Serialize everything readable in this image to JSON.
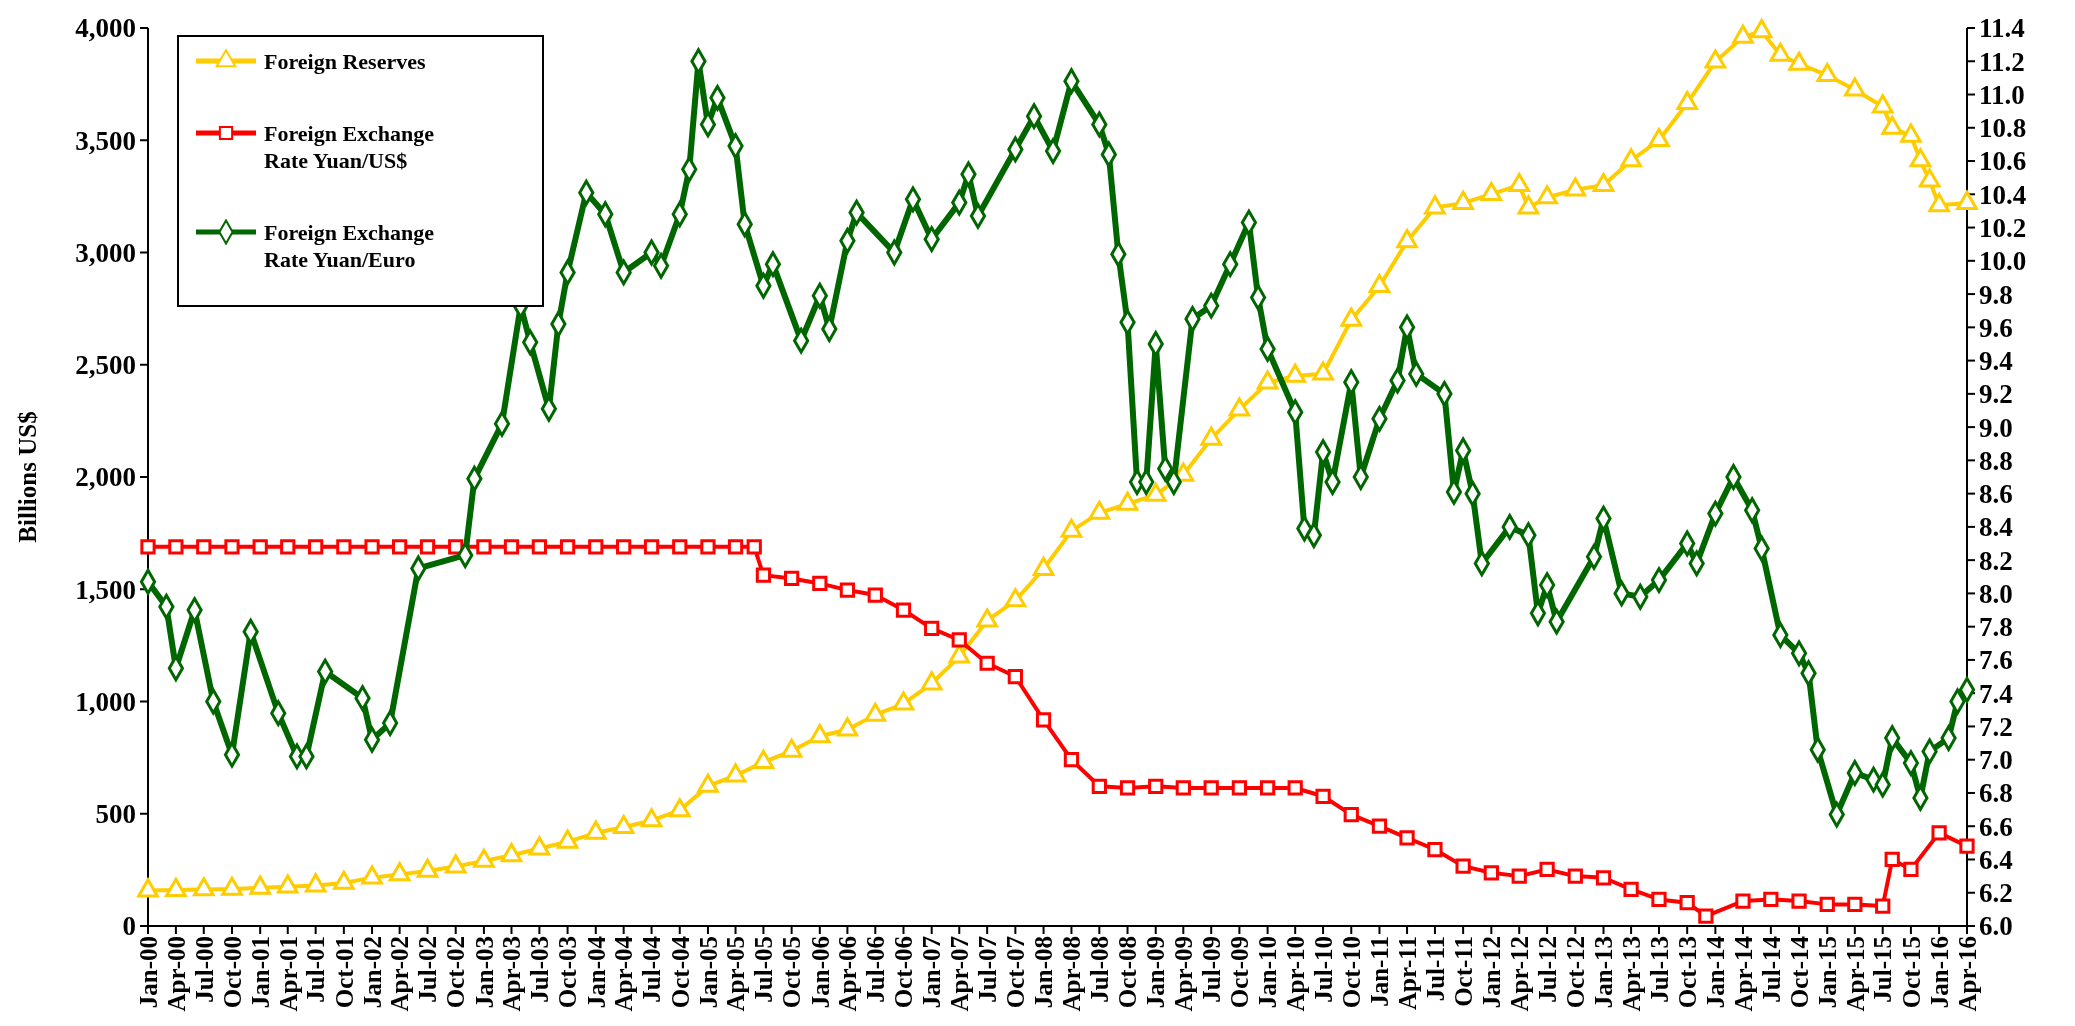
{
  "chart_data": {
    "type": "line",
    "ylabel": "Billions US$",
    "legend": "top left",
    "grid": false,
    "xlim": [
      "2000-01",
      "2016-04"
    ],
    "xticks": [
      {
        "value": "2000-01",
        "label": "Jan-00"
      },
      {
        "value": "2000-04",
        "label": "Apr-00"
      },
      {
        "value": "2000-07",
        "label": "Jul-00"
      },
      {
        "value": "2000-10",
        "label": "Oct-00"
      },
      {
        "value": "2001-01",
        "label": "Jan-01"
      },
      {
        "value": "2001-04",
        "label": "Apr-01"
      },
      {
        "value": "2001-07",
        "label": "Jul-01"
      },
      {
        "value": "2001-10",
        "label": "Oct-01"
      },
      {
        "value": "2002-01",
        "label": "Jan-02"
      },
      {
        "value": "2002-04",
        "label": "Apr-02"
      },
      {
        "value": "2002-07",
        "label": "Jul-02"
      },
      {
        "value": "2002-10",
        "label": "Oct-02"
      },
      {
        "value": "2003-01",
        "label": "Jan-03"
      },
      {
        "value": "2003-04",
        "label": "Apr-03"
      },
      {
        "value": "2003-07",
        "label": "Jul-03"
      },
      {
        "value": "2003-10",
        "label": "Oct-03"
      },
      {
        "value": "2004-01",
        "label": "Jan-04"
      },
      {
        "value": "2004-04",
        "label": "Apr-04"
      },
      {
        "value": "2004-07",
        "label": "Jul-04"
      },
      {
        "value": "2004-10",
        "label": "Oct-04"
      },
      {
        "value": "2005-01",
        "label": "Jan-05"
      },
      {
        "value": "2005-04",
        "label": "Apr-05"
      },
      {
        "value": "2005-07",
        "label": "Jul-05"
      },
      {
        "value": "2005-10",
        "label": "Oct-05"
      },
      {
        "value": "2006-01",
        "label": "Jan-06"
      },
      {
        "value": "2006-04",
        "label": "Apr-06"
      },
      {
        "value": "2006-07",
        "label": "Jul-06"
      },
      {
        "value": "2006-10",
        "label": "Oct-06"
      },
      {
        "value": "2007-01",
        "label": "Jan-07"
      },
      {
        "value": "2007-04",
        "label": "Apr-07"
      },
      {
        "value": "2007-07",
        "label": "Jul-07"
      },
      {
        "value": "2007-10",
        "label": "Oct-07"
      },
      {
        "value": "2008-01",
        "label": "Jan-08"
      },
      {
        "value": "2008-04",
        "label": "Apr-08"
      },
      {
        "value": "2008-07",
        "label": "Jul-08"
      },
      {
        "value": "2008-10",
        "label": "Oct-08"
      },
      {
        "value": "2009-01",
        "label": "Jan-09"
      },
      {
        "value": "2009-04",
        "label": "Apr-09"
      },
      {
        "value": "2009-07",
        "label": "Jul-09"
      },
      {
        "value": "2009-10",
        "label": "Oct-09"
      },
      {
        "value": "2010-01",
        "label": "Jan-10"
      },
      {
        "value": "2010-04",
        "label": "Apr-10"
      },
      {
        "value": "2010-07",
        "label": "Jul-10"
      },
      {
        "value": "2010-10",
        "label": "Oct-10"
      },
      {
        "value": "2011-01",
        "label": "Jan-11"
      },
      {
        "value": "2011-04",
        "label": "Apr-11"
      },
      {
        "value": "2011-07",
        "label": "Jul-11"
      },
      {
        "value": "2011-10",
        "label": "Oct-11"
      },
      {
        "value": "2012-01",
        "label": "Jan-12"
      },
      {
        "value": "2012-04",
        "label": "Apr-12"
      },
      {
        "value": "2012-07",
        "label": "Jul-12"
      },
      {
        "value": "2012-10",
        "label": "Oct-12"
      },
      {
        "value": "2013-01",
        "label": "Jan-13"
      },
      {
        "value": "2013-04",
        "label": "Apr-13"
      },
      {
        "value": "2013-07",
        "label": "Jul-13"
      },
      {
        "value": "2013-10",
        "label": "Oct-13"
      },
      {
        "value": "2014-01",
        "label": "Jan-14"
      },
      {
        "value": "2014-04",
        "label": "Apr-14"
      },
      {
        "value": "2014-07",
        "label": "Jul-14"
      },
      {
        "value": "2014-10",
        "label": "Oct-14"
      },
      {
        "value": "2015-01",
        "label": "Jan-15"
      },
      {
        "value": "2015-04",
        "label": "Apr-15"
      },
      {
        "value": "2015-07",
        "label": "Jul-15"
      },
      {
        "value": "2015-10",
        "label": "Oct-15"
      },
      {
        "value": "2016-01",
        "label": "Jan-16"
      },
      {
        "value": "2016-04",
        "label": "Apr-16"
      }
    ],
    "ylim": [
      0,
      4000
    ],
    "yticks": [
      0,
      500,
      {
        "value": 1000,
        "label": "1,000"
      },
      {
        "value": 1500,
        "label": "1,500"
      },
      {
        "value": 2000,
        "label": "2,000"
      },
      {
        "value": 2500,
        "label": "2,500"
      },
      {
        "value": 3000,
        "label": "3,000"
      },
      {
        "value": 3500,
        "label": "3,500"
      },
      {
        "value": 4000,
        "label": "4,000"
      }
    ],
    "y2lim": [
      6,
      11.4
    ],
    "y2ticks": [
      {
        "value": 6,
        "label": "6.0"
      },
      6.2,
      6.4,
      6.6,
      6.8,
      {
        "value": 7,
        "label": "7.0"
      },
      7.2,
      7.4,
      7.6,
      7.8,
      {
        "value": 8,
        "label": "8.0"
      },
      8.2,
      8.4,
      8.6,
      8.8,
      {
        "value": 9,
        "label": "9.0"
      },
      9.2,
      9.4,
      9.6,
      9.8,
      {
        "value": 10,
        "label": "10.0"
      },
      10.2,
      10.4,
      10.6,
      10.8,
      {
        "value": 11,
        "label": "11.0"
      },
      11.2,
      11.4
    ],
    "series": [
      {
        "name": "Foreign Reserves",
        "color": "#ffcc00",
        "marker": "triangle",
        "x": [
          "2000-01",
          "2000-04",
          "2000-07",
          "2000-10",
          "2001-01",
          "2001-04",
          "2001-07",
          "2001-10",
          "2002-01",
          "2002-04",
          "2002-07",
          "2002-10",
          "2003-01",
          "2003-04",
          "2003-07",
          "2003-10",
          "2004-01",
          "2004-04",
          "2004-07",
          "2004-10",
          "2005-01",
          "2005-04",
          "2005-07",
          "2005-10",
          "2006-01",
          "2006-04",
          "2006-07",
          "2006-10",
          "2007-01",
          "2007-04",
          "2007-07",
          "2007-10",
          "2008-01",
          "2008-04",
          "2008-07",
          "2008-10",
          "2009-01",
          "2009-04",
          "2009-07",
          "2009-10",
          "2010-01",
          "2010-04",
          "2010-07",
          "2010-10",
          "2011-01",
          "2011-04",
          "2011-07",
          "2011-10",
          "2012-01",
          "2012-04",
          "2012-05",
          "2012-07",
          "2012-10",
          "2013-01",
          "2013-04",
          "2013-07",
          "2013-10",
          "2014-01",
          "2014-04",
          "2014-06",
          "2014-08",
          "2014-10",
          "2015-01",
          "2015-04",
          "2015-07",
          "2015-08",
          "2015-10",
          "2015-11",
          "2015-12",
          "2016-01",
          "2016-04"
        ],
        "values": [
          158,
          160,
          163,
          165,
          170,
          175,
          180,
          192,
          215,
          230,
          245,
          265,
          290,
          315,
          345,
          375,
          415,
          440,
          470,
          515,
          624,
          670,
          730,
          780,
          845,
          875,
          940,
          990,
          1080,
          1200,
          1360,
          1450,
          1590,
          1760,
          1840,
          1880,
          1920,
          2010,
          2170,
          2300,
          2420,
          2450,
          2460,
          2700,
          2850,
          3050,
          3200,
          3220,
          3260,
          3300,
          3200,
          3245,
          3280,
          3300,
          3410,
          3500,
          3665,
          3850,
          3960,
          3985,
          3880,
          3840,
          3790,
          3725,
          3650,
          3555,
          3520,
          3410,
          3320,
          3210,
          3220
        ]
      },
      {
        "name": "Foreign Exchange Rate Yuan/US$",
        "color": "#ff0000",
        "marker": "square",
        "axis": "y2",
        "x": [
          "2000-01",
          "2000-04",
          "2000-07",
          "2000-10",
          "2001-01",
          "2001-04",
          "2001-07",
          "2001-10",
          "2002-01",
          "2002-04",
          "2002-07",
          "2002-10",
          "2003-01",
          "2003-04",
          "2003-07",
          "2003-10",
          "2004-01",
          "2004-04",
          "2004-07",
          "2004-10",
          "2005-01",
          "2005-04",
          "2005-06",
          "2005-07",
          "2005-10",
          "2006-01",
          "2006-04",
          "2006-07",
          "2006-10",
          "2007-01",
          "2007-04",
          "2007-07",
          "2007-10",
          "2008-01",
          "2008-04",
          "2008-07",
          "2008-10",
          "2009-01",
          "2009-04",
          "2009-07",
          "2009-10",
          "2010-01",
          "2010-04",
          "2010-07",
          "2010-10",
          "2011-01",
          "2011-04",
          "2011-07",
          "2011-10",
          "2012-01",
          "2012-04",
          "2012-07",
          "2012-10",
          "2013-01",
          "2013-04",
          "2013-07",
          "2013-10",
          "2013-12",
          "2014-04",
          "2014-07",
          "2014-10",
          "2015-01",
          "2015-04",
          "2015-07",
          "2015-08",
          "2015-10",
          "2016-01",
          "2016-04"
        ],
        "values": [
          8.28,
          8.28,
          8.28,
          8.28,
          8.28,
          8.28,
          8.28,
          8.28,
          8.28,
          8.28,
          8.28,
          8.28,
          8.28,
          8.28,
          8.28,
          8.28,
          8.28,
          8.28,
          8.28,
          8.28,
          8.28,
          8.28,
          8.28,
          8.11,
          8.09,
          8.06,
          8.02,
          7.99,
          7.9,
          7.79,
          7.72,
          7.58,
          7.5,
          7.24,
          7.0,
          6.84,
          6.83,
          6.84,
          6.83,
          6.83,
          6.83,
          6.83,
          6.83,
          6.78,
          6.67,
          6.6,
          6.53,
          6.46,
          6.36,
          6.32,
          6.3,
          6.34,
          6.3,
          6.29,
          6.22,
          6.16,
          6.14,
          6.06,
          6.15,
          6.16,
          6.15,
          6.13,
          6.13,
          6.12,
          6.4,
          6.34,
          6.56,
          6.48
        ]
      },
      {
        "name": "Foreign Exchange Rate Yuan/Euro",
        "color": "#006600",
        "marker": "diamond",
        "axis": "y2",
        "x": [
          "2000-01",
          "2000-03",
          "2000-04",
          "2000-06",
          "2000-08",
          "2000-10",
          "2000-12",
          "2001-03",
          "2001-05",
          "2001-06",
          "2001-08",
          "2001-12",
          "2002-01",
          "2002-03",
          "2002-06",
          "2002-11",
          "2002-12",
          "2003-03",
          "2003-05",
          "2003-06",
          "2003-08",
          "2003-09",
          "2003-10",
          "2003-12",
          "2004-02",
          "2004-04",
          "2004-07",
          "2004-08",
          "2004-10",
          "2004-11",
          "2004-12",
          "2005-01",
          "2005-02",
          "2005-04",
          "2005-05",
          "2005-07",
          "2005-08",
          "2005-11",
          "2006-01",
          "2006-02",
          "2006-04",
          "2006-05",
          "2006-09",
          "2006-11",
          "2007-01",
          "2007-04",
          "2007-05",
          "2007-06",
          "2007-10",
          "2007-12",
          "2008-02",
          "2008-04",
          "2008-07",
          "2008-08",
          "2008-09",
          "2008-10",
          "2008-11",
          "2008-12",
          "2009-01",
          "2009-02",
          "2009-03",
          "2009-05",
          "2009-07",
          "2009-09",
          "2009-11",
          "2009-12",
          "2010-01",
          "2010-04",
          "2010-05",
          "2010-06",
          "2010-07",
          "2010-08",
          "2010-10",
          "2010-11",
          "2011-01",
          "2011-03",
          "2011-04",
          "2011-05",
          "2011-08",
          "2011-09",
          "2011-10",
          "2011-11",
          "2011-12",
          "2012-03",
          "2012-05",
          "2012-06",
          "2012-07",
          "2012-08",
          "2012-12",
          "2013-01",
          "2013-03",
          "2013-05",
          "2013-07",
          "2013-10",
          "2013-11",
          "2014-01",
          "2014-03",
          "2014-05",
          "2014-06",
          "2014-08",
          "2014-10",
          "2014-11",
          "2014-12",
          "2015-02",
          "2015-04",
          "2015-06",
          "2015-07",
          "2015-08",
          "2015-10",
          "2015-11",
          "2015-12",
          "2016-02",
          "2016-03",
          "2016-04"
        ],
        "values": [
          8.07,
          7.92,
          7.55,
          7.9,
          7.35,
          7.03,
          7.77,
          7.28,
          7.02,
          7.02,
          7.53,
          7.37,
          7.12,
          7.22,
          8.15,
          8.23,
          8.69,
          9.02,
          9.73,
          9.51,
          9.11,
          9.62,
          9.93,
          10.41,
          10.28,
          9.93,
          10.05,
          9.97,
          10.28,
          10.55,
          11.2,
          10.82,
          10.98,
          10.69,
          10.22,
          9.85,
          9.98,
          9.52,
          9.79,
          9.59,
          10.12,
          10.29,
          10.05,
          10.37,
          10.13,
          10.35,
          10.52,
          10.27,
          10.67,
          10.87,
          10.66,
          11.08,
          10.82,
          10.64,
          10.04,
          9.63,
          8.67,
          8.67,
          9.5,
          8.75,
          8.67,
          9.65,
          9.73,
          9.98,
          10.23,
          9.78,
          9.47,
          9.09,
          8.39,
          8.35,
          8.85,
          8.67,
          9.27,
          8.7,
          9.05,
          9.28,
          9.6,
          9.32,
          9.2,
          8.61,
          8.86,
          8.6,
          8.18,
          8.4,
          8.35,
          7.88,
          8.05,
          7.83,
          8.22,
          8.45,
          8.0,
          7.98,
          8.08,
          8.3,
          8.18,
          8.48,
          8.7,
          8.5,
          8.27,
          7.75,
          7.64,
          7.52,
          7.06,
          6.67,
          6.92,
          6.88,
          6.85,
          7.13,
          6.98,
          6.77,
          7.05,
          7.13,
          7.35,
          7.42
        ]
      }
    ]
  }
}
